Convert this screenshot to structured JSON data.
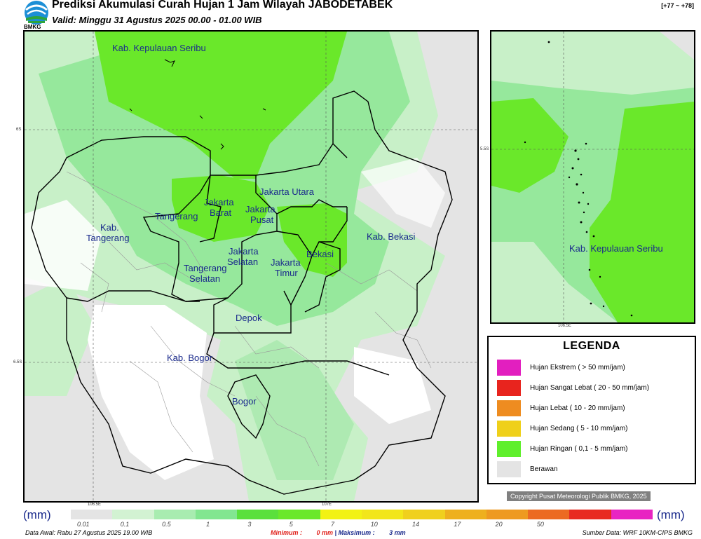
{
  "header": {
    "logo_text": "BMKG",
    "title": "Prediksi Akumulasi Curah Hujan 1 Jam Wilayah JABODETABEK",
    "subtitle": "Valid: Minggu 31 Agustus 2025 00.00 - 01.00 WIB",
    "corner": "[+77 ~ +78]"
  },
  "map": {
    "labels": {
      "kep_seribu": "Kab. Kepulauan Seribu",
      "kab_tangerang_1": "Kab.",
      "kab_tangerang_2": "Tangerang",
      "tangerang": "Tangerang",
      "jakarta_barat_1": "Jakarta",
      "jakarta_barat_2": "Barat",
      "jakarta_utara": "Jakarta Utara",
      "jakarta_pusat_1": "Jakarta",
      "jakarta_pusat_2": "Pusat",
      "jakarta_selatan_1": "Jakarta",
      "jakarta_selatan_2": "Selatan",
      "jakarta_timur_1": "Jakarta",
      "jakarta_timur_2": "Timur",
      "bekasi": "Bekasi",
      "kab_bekasi": "Kab. Bekasi",
      "tangerang_selatan_1": "Tangerang",
      "tangerang_selatan_2": "Selatan",
      "depok": "Depok",
      "kab_bogor": "Kab. Bogor",
      "bogor": "Bogor"
    },
    "ticks": {
      "lat_6s": "6S",
      "lat_65s": "6.5S",
      "lon_1065e": "106.5E",
      "lon_107e": "107E"
    }
  },
  "inset": {
    "label": "Kab. Kepulauan Seribu",
    "tick_lat": "5.5S",
    "tick_lon": "106.5E"
  },
  "legend": {
    "title": "LEGENDA",
    "items": [
      {
        "label": "Hujan Ekstrem ( > 50 mm/jam)",
        "color": "#e21fbf"
      },
      {
        "label": "Hujan Sangat Lebat ( 20 - 50 mm/jam)",
        "color": "#e8241e"
      },
      {
        "label": "Hujan Lebat ( 10 - 20 mm/jam)",
        "color": "#ee8c20"
      },
      {
        "label": "Hujan Sedang ( 5 - 10 mm/jam)",
        "color": "#efd01a"
      },
      {
        "label": "Hujan Ringan ( 0,1 - 5 mm/jam)",
        "color": "#5fef2c"
      },
      {
        "label": "Berawan",
        "color": "#e4e4e4"
      }
    ]
  },
  "copyright": "Copyright Pusat Meteorologi Publik BMKG, 2025",
  "colorbar": {
    "unit_left": "(mm)",
    "unit_right": "(mm)",
    "colors": [
      "#e4e4e4",
      "#d2f2d2",
      "#a8ecb0",
      "#82e690",
      "#5ae03c",
      "#6ae82a",
      "#f2f214",
      "#f2e61a",
      "#f0d01e",
      "#eeb01e",
      "#ee9a20",
      "#ec6a22",
      "#e82a20",
      "#e824c2"
    ],
    "ticks": [
      "0.01",
      "0.1",
      "0.5",
      "1",
      "3",
      "5",
      "7",
      "10",
      "14",
      "17",
      "20",
      "50"
    ]
  },
  "footer": {
    "data_awal": "Data Awal: Rabu 27 Agustus 2025 19.00 WIB",
    "minimum_label": "Minimum :",
    "minimum_value": "0 mm",
    "separator": "|",
    "maksimum_label": "Maksimum :",
    "maksimum_value": "3 mm",
    "source": "Sumber Data: WRF 10KM-CIPS BMKG"
  }
}
